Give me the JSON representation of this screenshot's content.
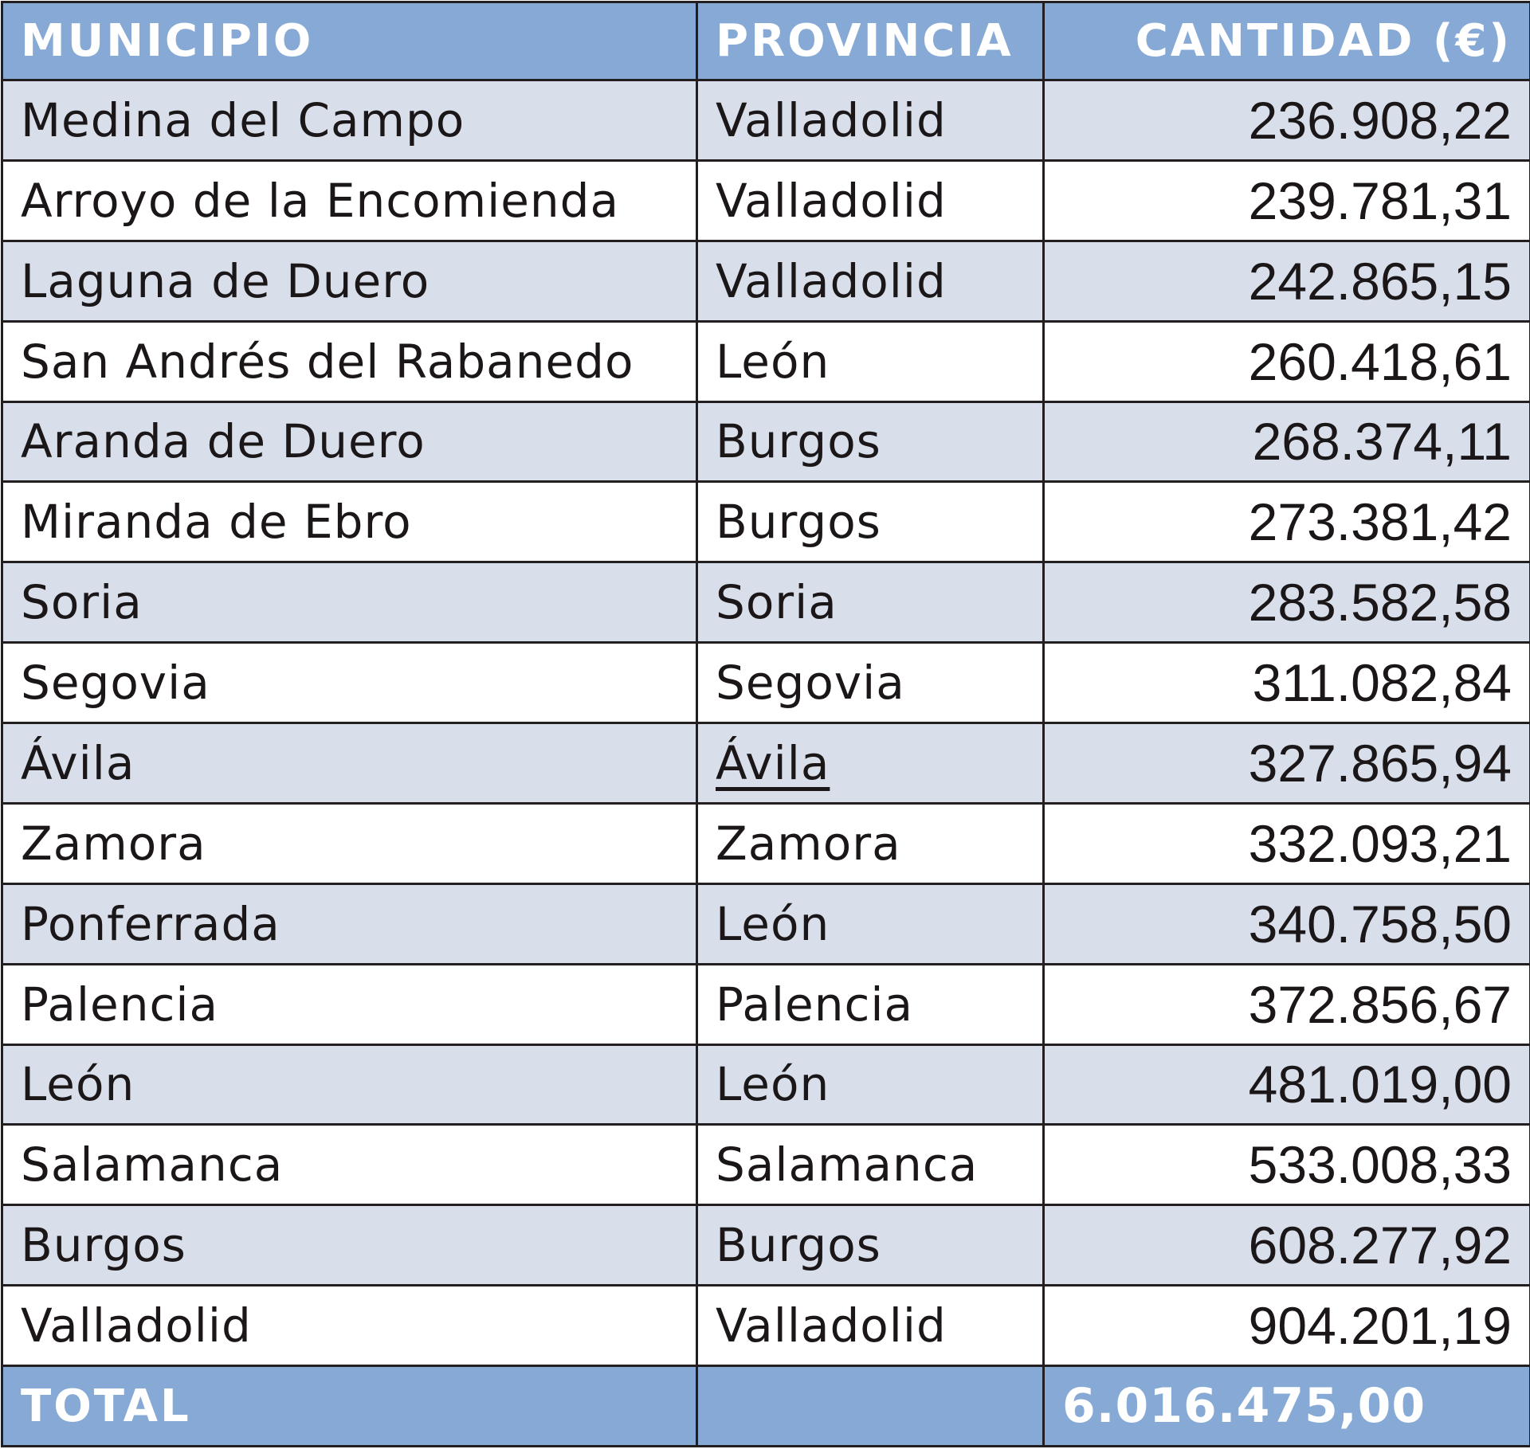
{
  "table": {
    "headers": [
      "MUNICIPIO",
      "PROVINCIA",
      "CANTIDAD (€)"
    ],
    "rows": [
      {
        "municipio": "Medina del Campo",
        "provincia": "Valladolid",
        "cantidad": "236.908,22"
      },
      {
        "municipio": "Arroyo de la Encomienda",
        "provincia": "Valladolid",
        "cantidad": "239.781,31"
      },
      {
        "municipio": "Laguna de Duero",
        "provincia": "Valladolid",
        "cantidad": "242.865,15"
      },
      {
        "municipio": "San Andrés del Rabanedo",
        "provincia": "León",
        "cantidad": "260.418,61"
      },
      {
        "municipio": "Aranda de Duero",
        "provincia": "Burgos",
        "cantidad": "268.374,11"
      },
      {
        "municipio": "Miranda de Ebro",
        "provincia": "Burgos",
        "cantidad": "273.381,42"
      },
      {
        "municipio": "Soria",
        "provincia": "Soria",
        "cantidad": "283.582,58"
      },
      {
        "municipio": "Segovia",
        "provincia": "Segovia",
        "cantidad": "311.082,84"
      },
      {
        "municipio": "Ávila",
        "provincia": "Ávila",
        "cantidad": "327.865,94"
      },
      {
        "municipio": "Zamora",
        "provincia": "Zamora",
        "cantidad": "332.093,21"
      },
      {
        "municipio": "Ponferrada",
        "provincia": "León",
        "cantidad": "340.758,50"
      },
      {
        "municipio": "Palencia",
        "provincia": "Palencia",
        "cantidad": "372.856,67"
      },
      {
        "municipio": "León",
        "provincia": "León",
        "cantidad": "481.019,00"
      },
      {
        "municipio": "Salamanca",
        "provincia": "Salamanca",
        "cantidad": "533.008,33"
      },
      {
        "municipio": "Burgos",
        "provincia": "Burgos",
        "cantidad": "608.277,92"
      },
      {
        "municipio": "Valladolid",
        "provincia": "Valladolid",
        "cantidad": "904.201,19"
      }
    ],
    "total": {
      "label": "TOTAL",
      "provincia": "",
      "cantidad": "6.016.475,00"
    }
  },
  "colors": {
    "header_bg": "#87a9d6",
    "alt_row_bg": "#d9dfea",
    "row_bg": "#ffffff",
    "border": "#231f20",
    "header_text": "#ffffff",
    "body_text": "#1b1718"
  }
}
